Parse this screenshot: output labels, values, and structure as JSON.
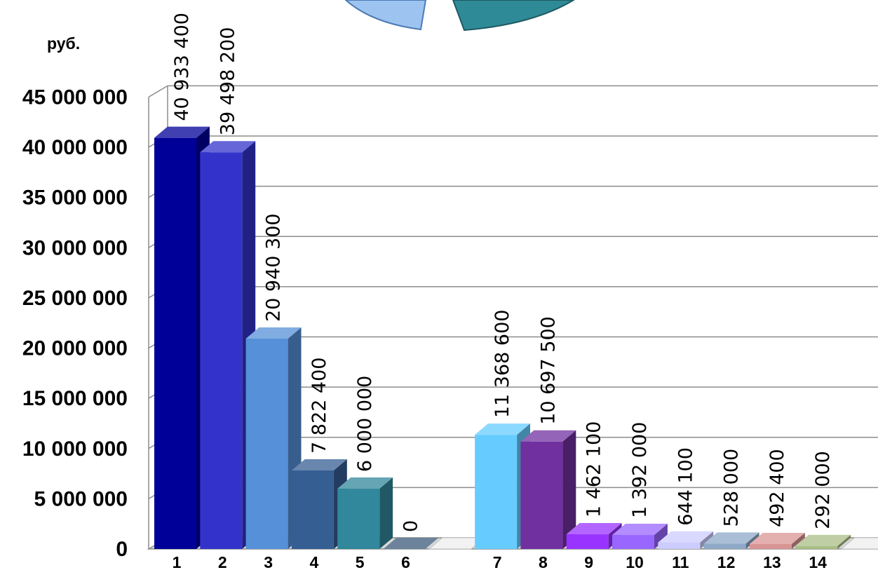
{
  "chart_data": {
    "type": "bar",
    "style": "3d-column",
    "ylabel": "руб.",
    "ylim": [
      0,
      45000000
    ],
    "ytick_step": 5000000,
    "ytick_labels": [
      "0",
      "5 000 000",
      "10 000 000",
      "15 000 000",
      "20 000 000",
      "25 000 000",
      "30 000 000",
      "35 000 000",
      "40 000 000",
      "45 000 000"
    ],
    "grid": true,
    "categories": [
      "1",
      "2",
      "3",
      "4",
      "5",
      "6",
      "",
      "7",
      "8",
      "9",
      "10",
      "11",
      "12",
      "13",
      "14",
      ""
    ],
    "values": [
      40933400,
      39498200,
      20940300,
      7822400,
      6000000,
      0,
      null,
      11368600,
      10697500,
      1462100,
      1392000,
      644100,
      528000,
      492400,
      292000,
      null
    ],
    "data_labels": [
      "40 933 400",
      "39 498 200",
      "20 940 300",
      "7 822 400",
      "6 000 000",
      "0",
      "",
      "11 368 600",
      "10 697 500",
      "1 462 100",
      "1 392 000",
      "644 100",
      "528 000",
      "492 400",
      "292 000",
      ""
    ],
    "colors": [
      "#000099",
      "#3333CC",
      "#5590D8",
      "#355E93",
      "#31879B",
      "#3B5A7A",
      "#FFFFFF",
      "#66CCFF",
      "#7030A0",
      "#9933FF",
      "#9966FF",
      "#CCCCFF",
      "#8EA9C8",
      "#D99594",
      "#A9BE85",
      "#FFFFFF"
    ]
  },
  "pie_fragment": {
    "colors": [
      "#9DC3F0",
      "#2E8A96"
    ]
  }
}
